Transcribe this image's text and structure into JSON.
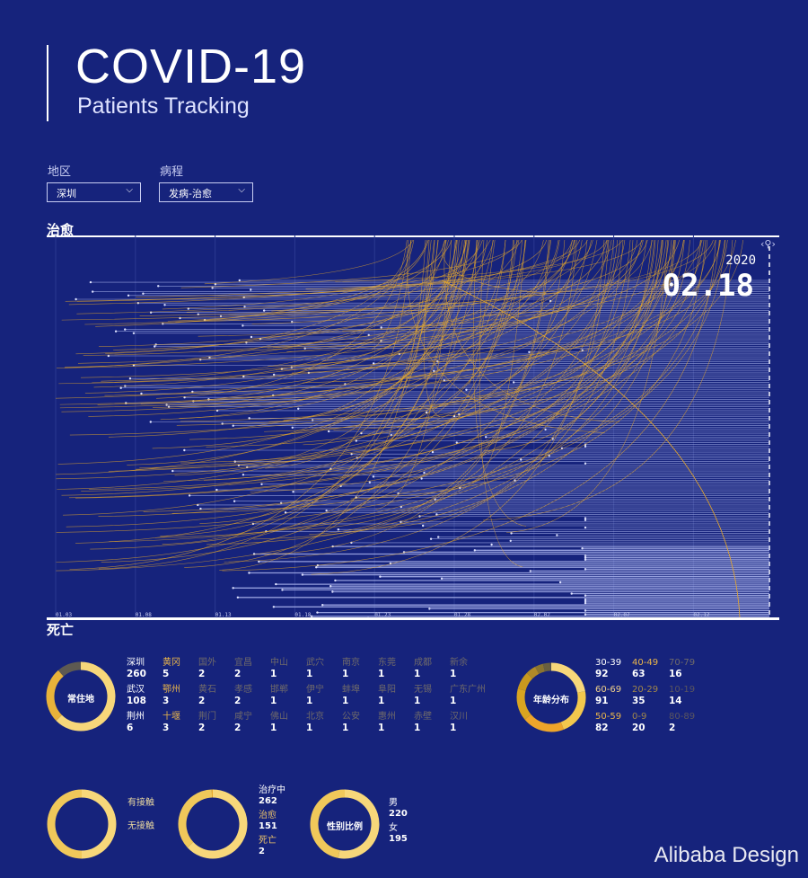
{
  "header": {
    "title": "COVID-19",
    "subtitle": "Patients Tracking"
  },
  "filters": {
    "region_label": "地区",
    "region_value": "深圳",
    "course_label": "病程",
    "course_value": "发病-治愈"
  },
  "sections": {
    "cured": "治愈",
    "death": "死亡"
  },
  "timeline": {
    "year": "2020",
    "current_date": "02.18",
    "x_ticks": [
      "01.03",
      "01.08",
      "01.13",
      "01.18",
      "01.23",
      "01.28",
      "02.02",
      "02.07",
      "02.12"
    ],
    "colors": {
      "background": "#16237c",
      "arc": "#e8a92a",
      "bar": "#aab4ee"
    }
  },
  "residence": {
    "label": "常住地",
    "cities": [
      {
        "name": "深圳",
        "count": "260"
      },
      {
        "name": "黄冈",
        "count": "5"
      },
      {
        "name": "国外",
        "count": "2"
      },
      {
        "name": "宜昌",
        "count": "2"
      },
      {
        "name": "中山",
        "count": "1"
      },
      {
        "name": "武穴",
        "count": "1"
      },
      {
        "name": "南京",
        "count": "1"
      },
      {
        "name": "东莞",
        "count": "1"
      },
      {
        "name": "成都",
        "count": "1"
      },
      {
        "name": "新余",
        "count": "1"
      },
      {
        "name": "武汉",
        "count": "108"
      },
      {
        "name": "鄂州",
        "count": "3"
      },
      {
        "name": "黄石",
        "count": "2"
      },
      {
        "name": "孝感",
        "count": "2"
      },
      {
        "name": "邯郸",
        "count": "1"
      },
      {
        "name": "伊宁",
        "count": "1"
      },
      {
        "name": "蚌埠",
        "count": "1"
      },
      {
        "name": "阜阳",
        "count": "1"
      },
      {
        "name": "无锡",
        "count": "1"
      },
      {
        "name": "广东广州",
        "count": "1"
      },
      {
        "name": "荆州",
        "count": "6"
      },
      {
        "name": "十堰",
        "count": "3"
      },
      {
        "name": "荆门",
        "count": "2"
      },
      {
        "name": "咸宁",
        "count": "2"
      },
      {
        "name": "佛山",
        "count": "1"
      },
      {
        "name": "北京",
        "count": "1"
      },
      {
        "name": "公安",
        "count": "1"
      },
      {
        "name": "惠州",
        "count": "1"
      },
      {
        "name": "赤壁",
        "count": "1"
      },
      {
        "name": "汉川",
        "count": "1"
      }
    ]
  },
  "age": {
    "label": "年龄分布",
    "groups": [
      {
        "range": "30-39",
        "count": "92"
      },
      {
        "range": "40-49",
        "count": "63"
      },
      {
        "range": "70-79",
        "count": "16"
      },
      {
        "range": "60-69",
        "count": "91"
      },
      {
        "range": "20-29",
        "count": "35"
      },
      {
        "range": "10-19",
        "count": "14"
      },
      {
        "range": "50-59",
        "count": "82"
      },
      {
        "range": "0-9",
        "count": "20"
      },
      {
        "range": "80-89",
        "count": "2"
      }
    ]
  },
  "contact": {
    "items": [
      {
        "label": "有接触"
      },
      {
        "label": "无接触"
      }
    ]
  },
  "status": {
    "items": [
      {
        "label": "治疗中",
        "count": "262"
      },
      {
        "label": "治愈",
        "count": "151"
      },
      {
        "label": "死亡",
        "count": "2"
      }
    ]
  },
  "gender": {
    "label": "性别比例",
    "items": [
      {
        "label": "男",
        "count": "220"
      },
      {
        "label": "女",
        "count": "195"
      }
    ]
  },
  "watermark": "Alibaba Design"
}
